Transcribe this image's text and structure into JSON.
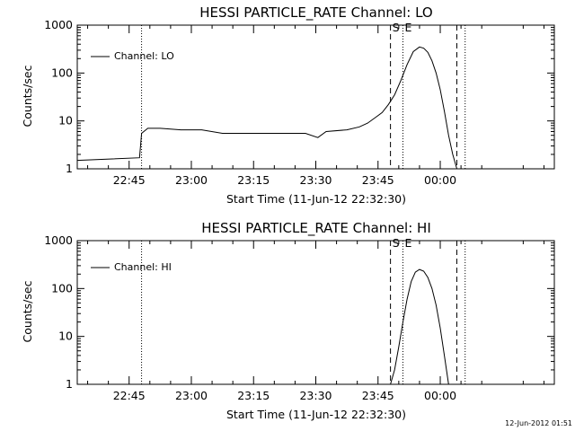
{
  "footer_timestamp": "12-Jun-2012 01:51",
  "chart_data": [
    {
      "type": "line",
      "title": "HESSI PARTICLE_RATE Channel: LO",
      "xlabel": "Start Time (11-Jun-12 22:32:30)",
      "ylabel": "Counts/sec",
      "yscale": "log",
      "ylim": [
        1,
        1000
      ],
      "xlim_minutes_after_start": [
        0,
        115
      ],
      "x_tick_labels": [
        "22:45",
        "23:00",
        "23:15",
        "23:30",
        "23:45",
        "00:00"
      ],
      "x_tick_minutes_after_start": [
        12.5,
        27.5,
        42.5,
        57.5,
        72.5,
        87.5
      ],
      "y_tick_labels": [
        "1",
        "10",
        "100",
        "1000"
      ],
      "y_tick_values": [
        1,
        10,
        100,
        1000
      ],
      "grid": false,
      "legend": {
        "position": "top-left",
        "entries": [
          "Channel: LO"
        ]
      },
      "markers": [
        {
          "label": "S",
          "style": "dashed",
          "x_minutes_after_start": 75.5
        },
        {
          "label": "E",
          "style": "dotted",
          "x_minutes_after_start": 78.5
        }
      ],
      "vertical_lines": [
        {
          "style": "dotted",
          "x_minutes_after_start": 15.5
        },
        {
          "style": "dashed",
          "x_minutes_after_start": 91.5
        },
        {
          "style": "dotted",
          "x_minutes_after_start": 93.5
        }
      ],
      "series": [
        {
          "name": "Channel: LO",
          "x_minutes_after_start": [
            0,
            15,
            15.5,
            17,
            20,
            25,
            30,
            35,
            40,
            45,
            50,
            55,
            58,
            60,
            65,
            68,
            70,
            72,
            73.5,
            75,
            76.5,
            78,
            79.5,
            81,
            82.5,
            83.5,
            84.5,
            85.5,
            86.5,
            87.5,
            88.5,
            89.5,
            90.5,
            91.5
          ],
          "values": [
            1.5,
            1.7,
            5.5,
            7,
            7,
            6.5,
            6.5,
            5.5,
            5.5,
            5.5,
            5.5,
            5.5,
            4.5,
            6,
            6.5,
            7.5,
            9,
            12,
            15,
            22,
            35,
            70,
            150,
            280,
            350,
            330,
            270,
            180,
            100,
            45,
            16,
            5,
            2,
            1
          ]
        }
      ]
    },
    {
      "type": "line",
      "title": "HESSI PARTICLE_RATE Channel: HI",
      "xlabel": "Start Time (11-Jun-12 22:32:30)",
      "ylabel": "Counts/sec",
      "yscale": "log",
      "ylim": [
        1,
        1000
      ],
      "xlim_minutes_after_start": [
        0,
        115
      ],
      "x_tick_labels": [
        "22:45",
        "23:00",
        "23:15",
        "23:30",
        "23:45",
        "00:00"
      ],
      "x_tick_minutes_after_start": [
        12.5,
        27.5,
        42.5,
        57.5,
        72.5,
        87.5
      ],
      "y_tick_labels": [
        "1",
        "10",
        "100",
        "1000"
      ],
      "y_tick_values": [
        1,
        10,
        100,
        1000
      ],
      "grid": false,
      "legend": {
        "position": "top-left",
        "entries": [
          "Channel: HI"
        ]
      },
      "markers": [
        {
          "label": "S",
          "style": "dashed",
          "x_minutes_after_start": 75.5
        },
        {
          "label": "E",
          "style": "dotted",
          "x_minutes_after_start": 78.5
        }
      ],
      "vertical_lines": [
        {
          "style": "dotted",
          "x_minutes_after_start": 15.5
        },
        {
          "style": "dashed",
          "x_minutes_after_start": 91.5
        },
        {
          "style": "dotted",
          "x_minutes_after_start": 93.5
        }
      ],
      "series": [
        {
          "name": "Channel: HI",
          "x_minutes_after_start": [
            75.5,
            76.5,
            77.5,
            78.5,
            79.5,
            80.5,
            81.5,
            82.5,
            83.5,
            84.5,
            85.5,
            86.5,
            87.5,
            88.5,
            89.5
          ],
          "values": [
            1,
            2,
            6,
            20,
            60,
            140,
            220,
            250,
            230,
            170,
            100,
            45,
            15,
            4,
            1
          ]
        }
      ]
    }
  ]
}
